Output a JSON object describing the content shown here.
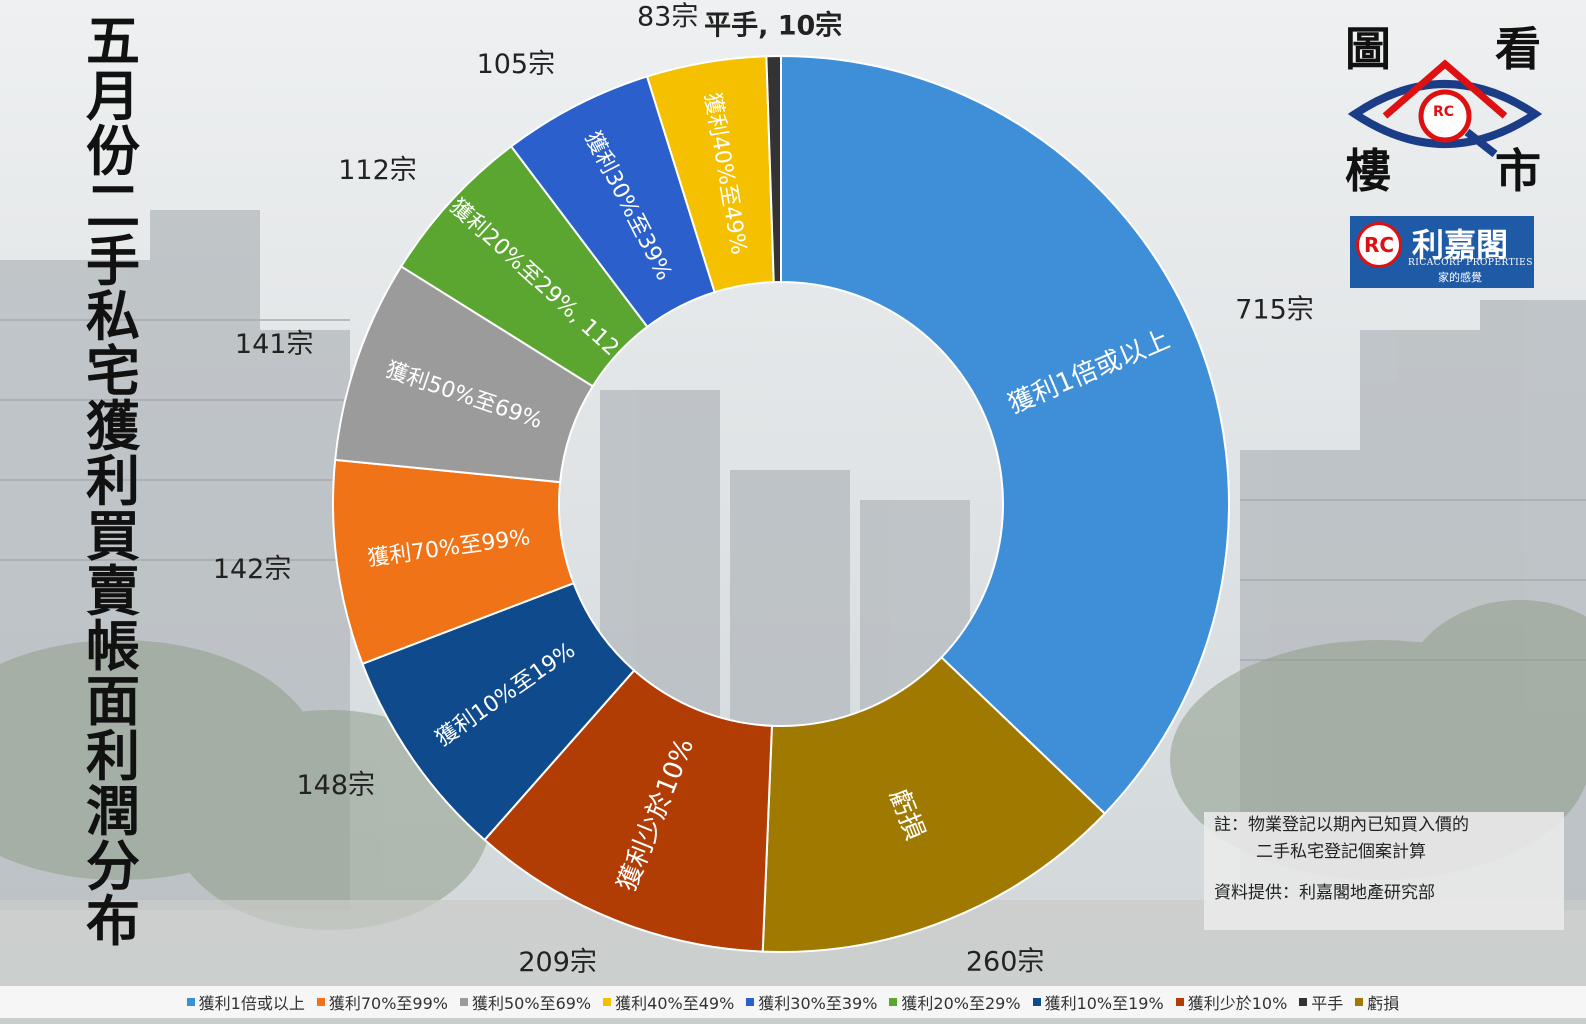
{
  "title": "五月份二手私宅獲利買賣帳面利潤分布",
  "logo": {
    "characters": [
      "圖",
      "看",
      "樓",
      "市"
    ],
    "badge": "RC",
    "company_name": "利嘉閣",
    "company_en": "RICACORP PROPERTIES",
    "company_tagline": "家的感覺"
  },
  "notes": {
    "line1": "註：物業登記以期內已知買入價的",
    "line2": "二手私宅登記個案計算",
    "line3": "資料提供：利嘉閣地產研究部"
  },
  "chart_data": {
    "type": "pie",
    "donut": true,
    "start": "top, clockwise",
    "slices": [
      {
        "name": "獲利1倍或以上",
        "value": 715,
        "label": "715宗",
        "inner_label": "獲利1倍或以上",
        "color": "#3f8ed8"
      },
      {
        "name": "虧損",
        "value": 260,
        "label": "260宗",
        "inner_label": "虧損",
        "color": "#a07a00"
      },
      {
        "name": "獲利少於10%",
        "value": 209,
        "label": "209宗",
        "inner_label": "獲利少於10%",
        "color": "#b13d05"
      },
      {
        "name": "獲利10%至19%",
        "value": 148,
        "label": "148宗",
        "inner_label": "獲利10%至19%",
        "color": "#0e4a8c"
      },
      {
        "name": "獲利70%至99%",
        "value": 142,
        "label": "142宗",
        "inner_label": "獲利70%至99%",
        "color": "#f07317"
      },
      {
        "name": "獲利50%至69%",
        "value": 141,
        "label": "141宗",
        "inner_label": "獲利50%至69%",
        "color": "#9b9b9b"
      },
      {
        "name": "獲利20%至29%",
        "value": 112,
        "label": "112宗",
        "inner_label": "獲利20%至29%, 112",
        "color": "#5aa630"
      },
      {
        "name": "獲利30%至39%",
        "value": 105,
        "label": "105宗",
        "inner_label": "獲利30%至39%",
        "color": "#2a5fcc"
      },
      {
        "name": "獲利40%至49%",
        "value": 83,
        "label": "83宗",
        "inner_label": "獲利40%至49%",
        "color": "#f5c000"
      },
      {
        "name": "平手",
        "value": 10,
        "label": "平手, 10宗",
        "inner_label": "",
        "color": "#333333"
      }
    ],
    "legend_position": "bottom",
    "legend": [
      {
        "name": "獲利1倍或以上",
        "color": "#3f8ed8"
      },
      {
        "name": "獲利70%至99%",
        "color": "#f07317"
      },
      {
        "name": "獲利50%至69%",
        "color": "#9b9b9b"
      },
      {
        "name": "獲利40%至49%",
        "color": "#f5c000"
      },
      {
        "name": "獲利30%至39%",
        "color": "#2a5fcc"
      },
      {
        "name": "獲利20%至29%",
        "color": "#5aa630"
      },
      {
        "name": "獲利10%至19%",
        "color": "#0e4a8c"
      },
      {
        "name": "獲利少於10%",
        "color": "#b13d05"
      },
      {
        "name": "平手",
        "color": "#333333"
      },
      {
        "name": "虧損",
        "color": "#a07a00"
      }
    ]
  }
}
